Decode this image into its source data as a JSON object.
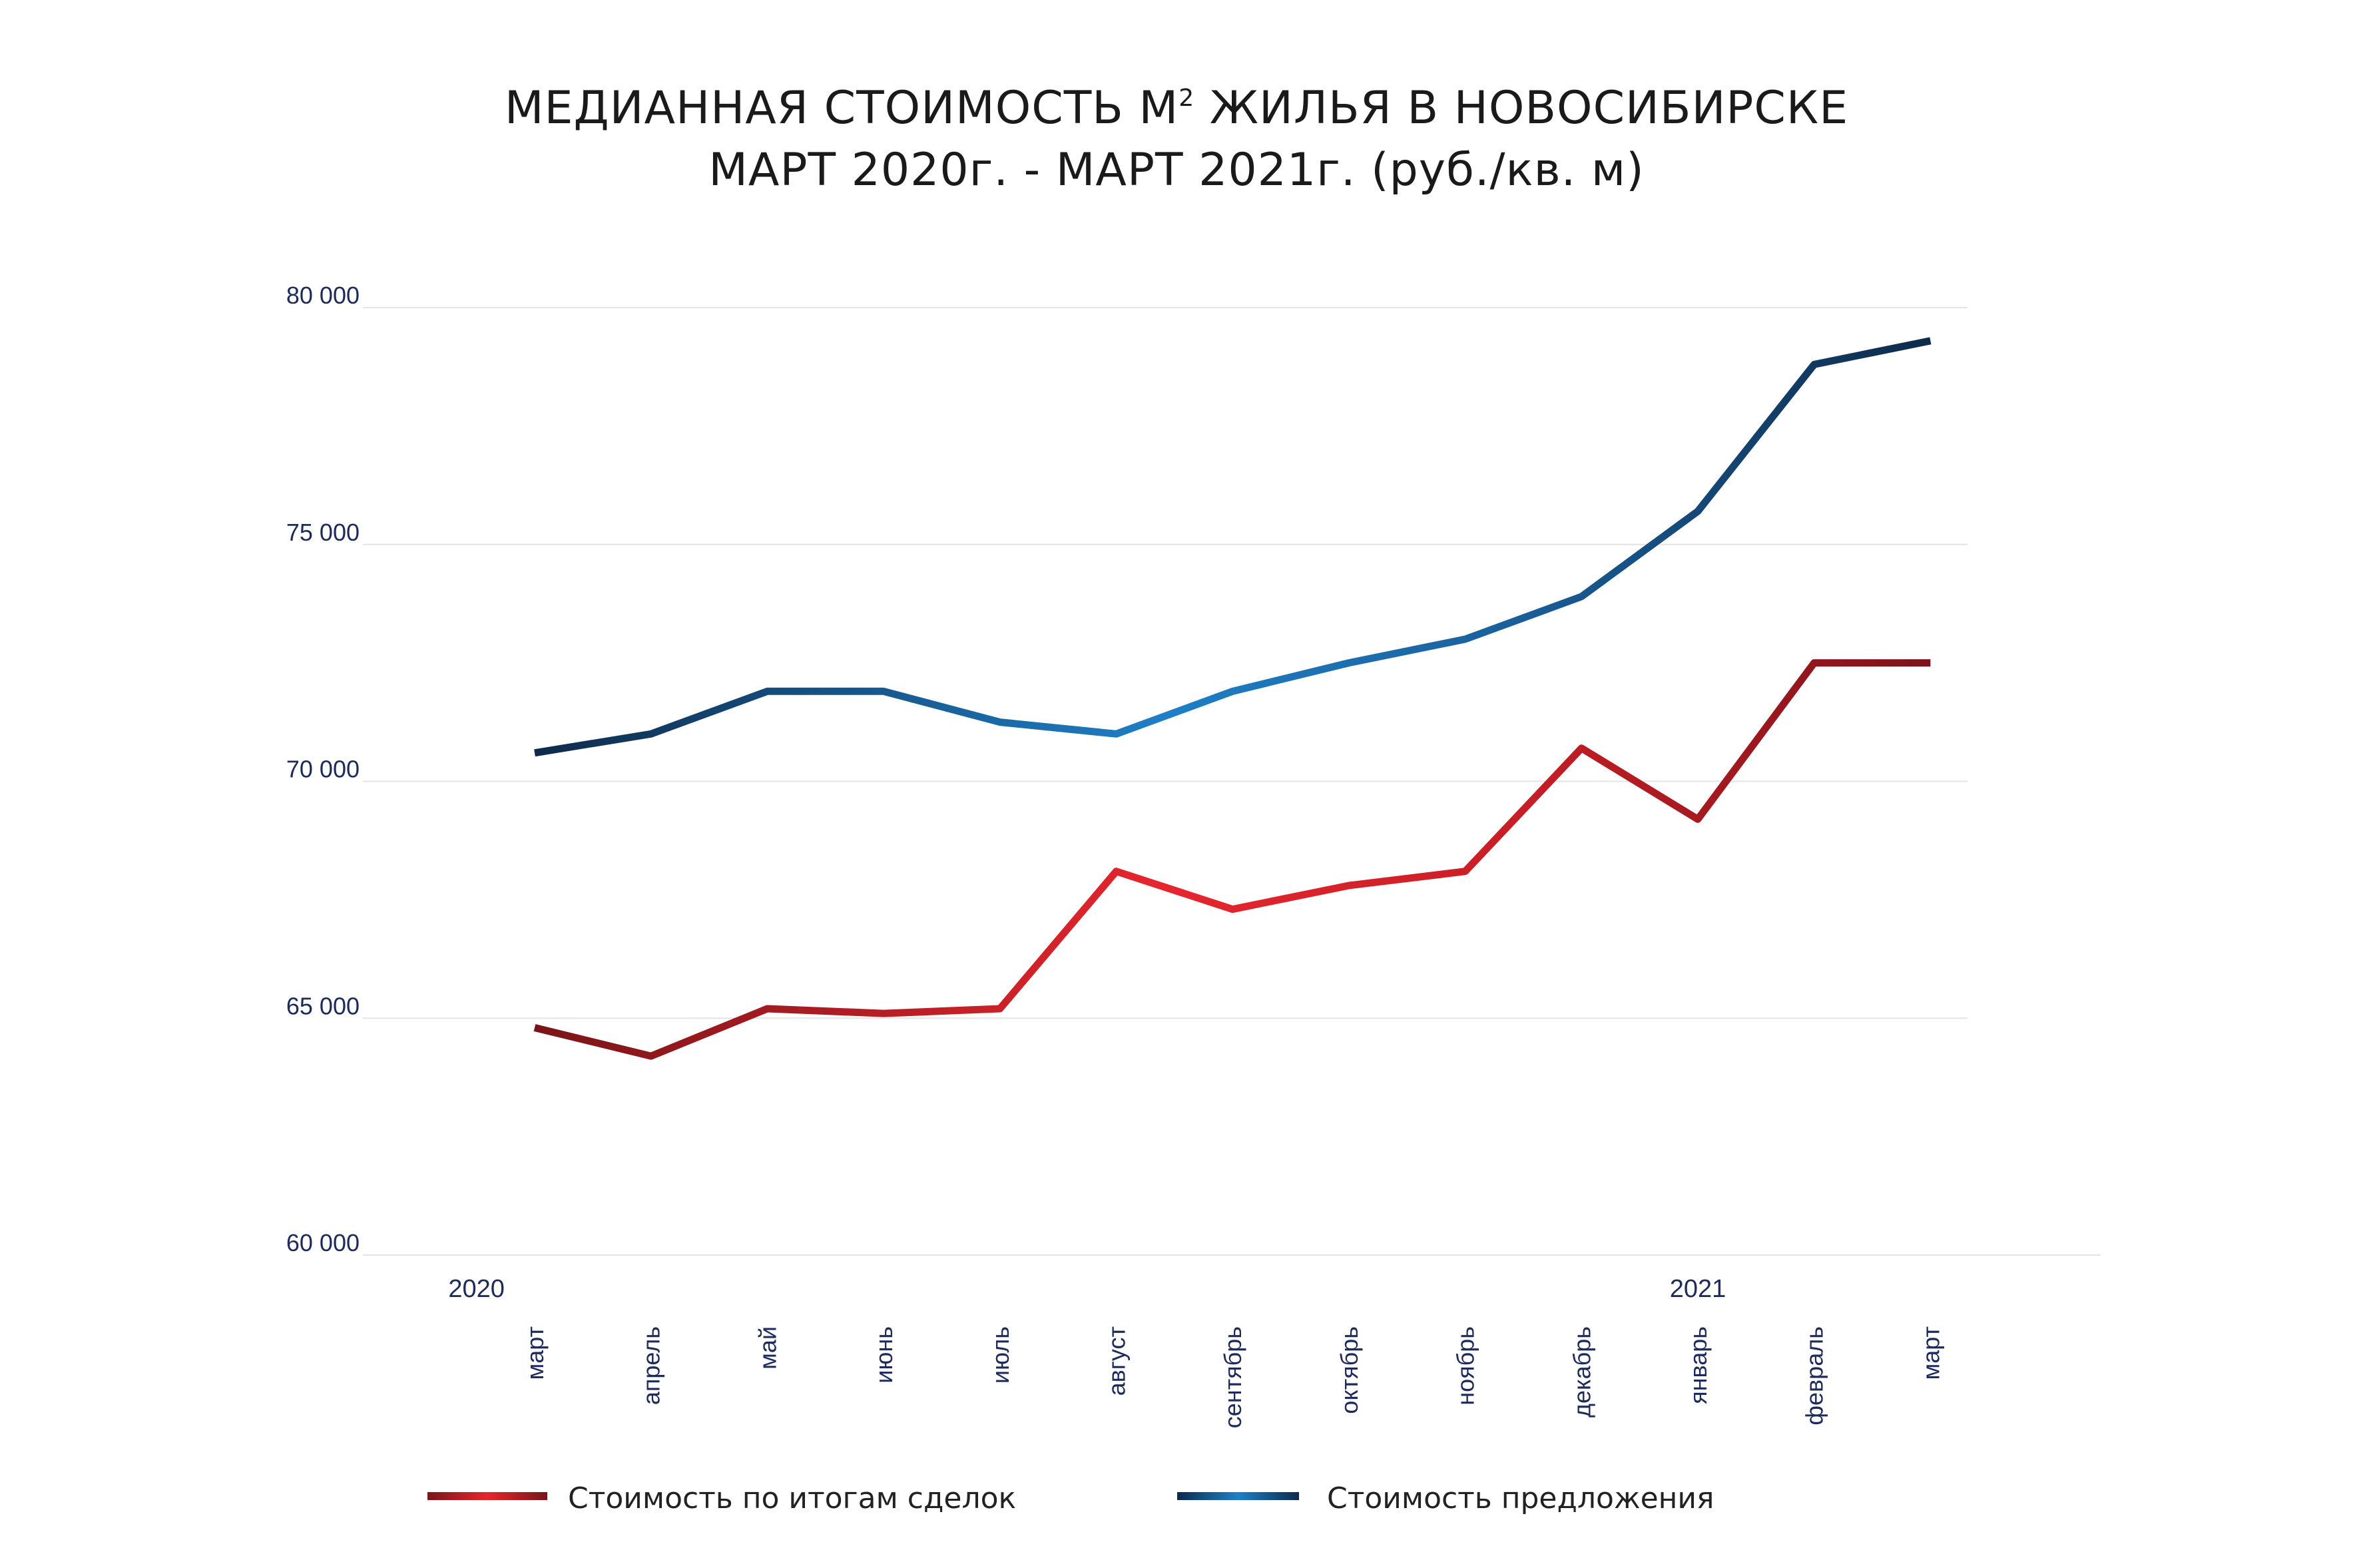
{
  "chart_data": {
    "type": "line",
    "title_line1": "МЕДИАННАЯ СТОИМОСТЬ М",
    "title_sup": "2",
    "title_line1_rest": " ЖИЛЬЯ В НОВОСИБИРСКЕ",
    "title_line2": "МАРТ 2020г. - МАРТ 2021г.  (руб./кв. м)",
    "categories": [
      "март",
      "апрель",
      "май",
      "июнь",
      "июль",
      "август",
      "сентябрь",
      "октябрь",
      "ноябрь",
      "декабрь",
      "январь",
      "февраль",
      "март"
    ],
    "year_labels": [
      {
        "label": "2020",
        "index": -0.5
      },
      {
        "label": "2021",
        "index": 10
      }
    ],
    "ylim": [
      60000,
      80000
    ],
    "yticks": [
      60000,
      65000,
      70000,
      75000,
      80000
    ],
    "ytick_labels": [
      "60 000",
      "65 000",
      "70 000",
      "75 000",
      "80 000"
    ],
    "grid": true,
    "legend_position": "bottom",
    "series": [
      {
        "name": "Стоимость по итогам сделок",
        "values": [
          64800,
          64200,
          65200,
          65100,
          65200,
          68100,
          67300,
          67800,
          68100,
          70700,
          69200,
          72500,
          72500
        ],
        "color_dark": "#7a1419",
        "color_light": "#e6262e"
      },
      {
        "name": "Стоимость предложения",
        "values": [
          70600,
          71000,
          71900,
          71900,
          71250,
          71000,
          71900,
          72500,
          73000,
          73900,
          75700,
          78800,
          79300
        ],
        "color_dark": "#0e2a4a",
        "color_light": "#1f7fc6"
      }
    ]
  }
}
